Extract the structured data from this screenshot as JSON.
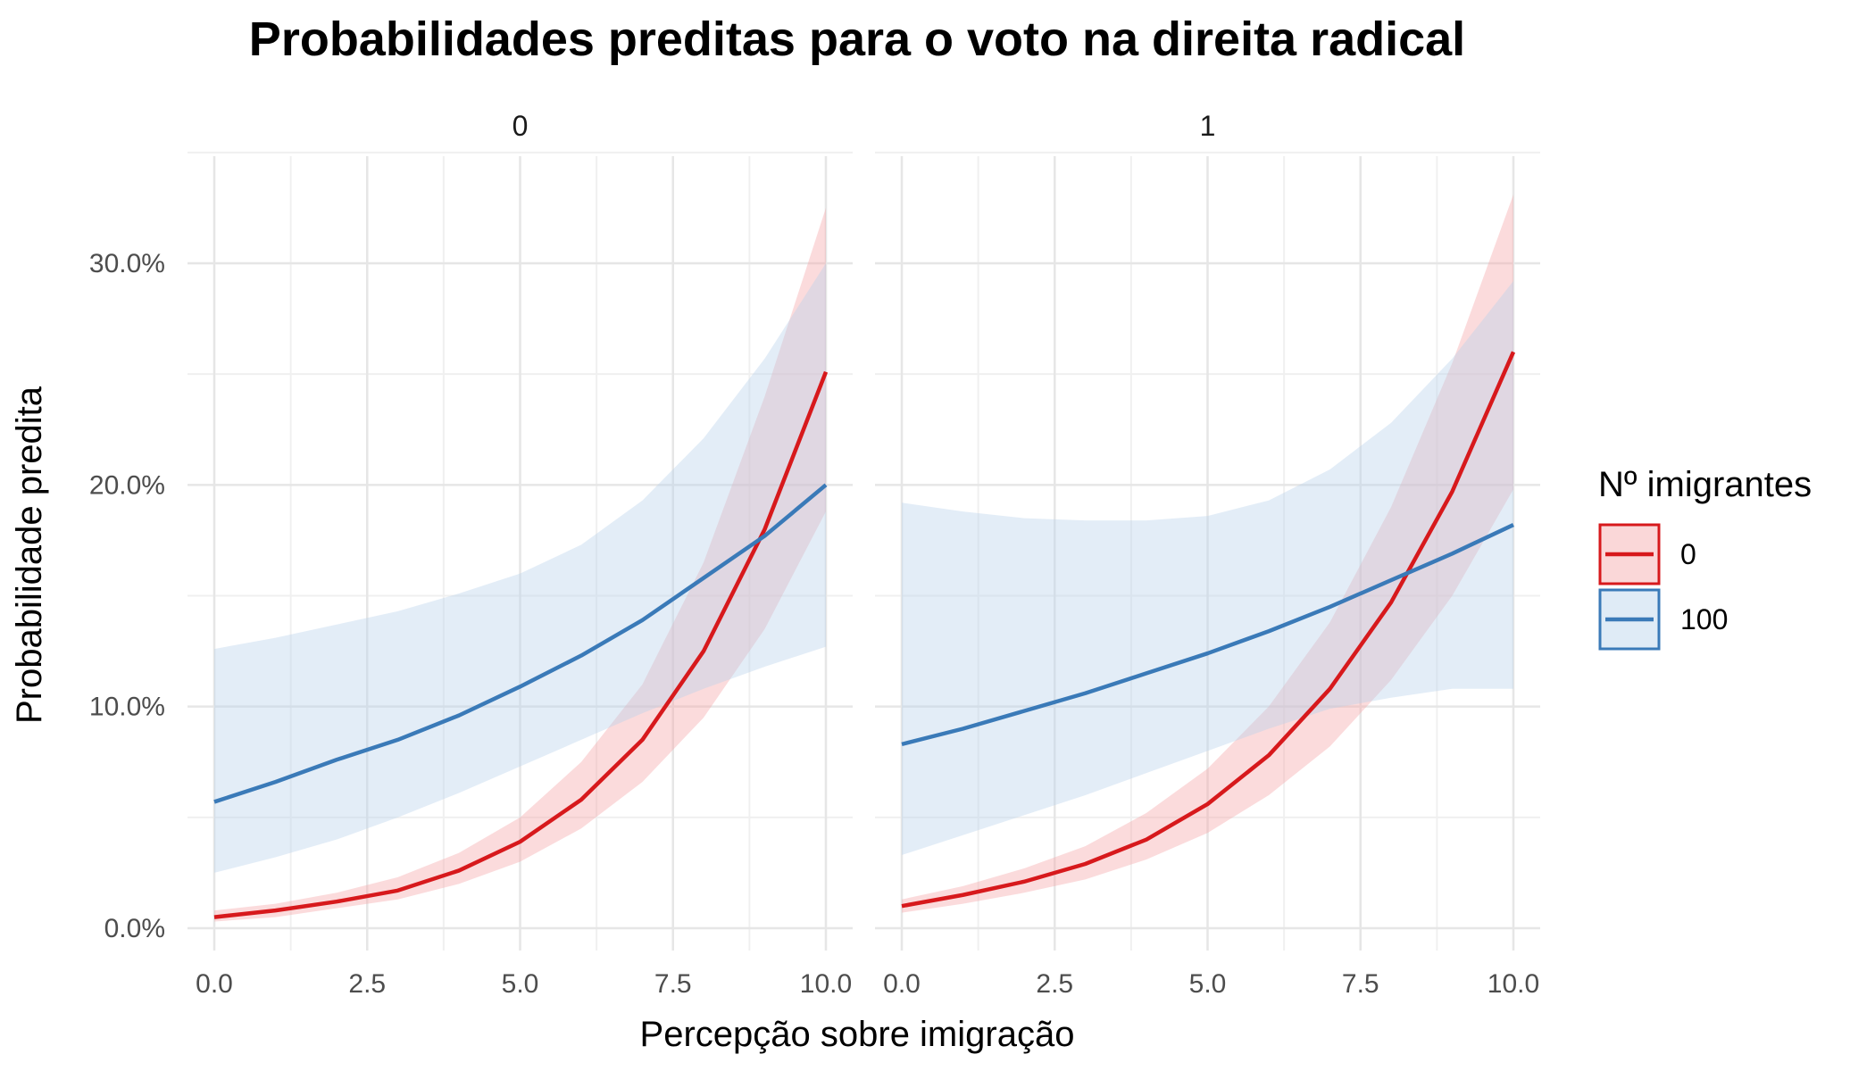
{
  "chart_data": {
    "type": "line",
    "title": "Probabilidades preditas para o voto na direita radical",
    "xlabel": "Percepção sobre imigração",
    "ylabel": "Probabilidade predita",
    "xlim": [
      0,
      10
    ],
    "ylim": [
      0,
      0.33
    ],
    "x_ticks": [
      0,
      2.5,
      5,
      7.5,
      10
    ],
    "x_tick_labels": [
      "0.0",
      "2.5",
      "5.0",
      "7.5",
      "10.0"
    ],
    "y_ticks": [
      0,
      0.1,
      0.2,
      0.3
    ],
    "y_tick_labels": [
      "0.0%",
      "10.0%",
      "20.0%",
      "30.0%"
    ],
    "grid": true,
    "legend": {
      "title": "Nº imigrantes",
      "position": "right",
      "entries": [
        {
          "label": "0",
          "color": "#d7191c",
          "fill": "#f4a6a8"
        },
        {
          "label": "100",
          "color": "#3a7ab8",
          "fill": "#b9d3ea"
        }
      ]
    },
    "panels": [
      {
        "label": "0",
        "x": [
          0,
          1,
          2,
          3,
          4,
          5,
          6,
          7,
          8,
          9,
          10
        ],
        "series": [
          {
            "name": "0",
            "color": "#d7191c",
            "values": [
              0.005,
              0.008,
              0.012,
              0.017,
              0.026,
              0.039,
              0.058,
              0.085,
              0.125,
              0.18,
              0.251
            ],
            "lower": [
              0.003,
              0.005,
              0.009,
              0.013,
              0.02,
              0.03,
              0.045,
              0.066,
              0.095,
              0.135,
              0.188
            ],
            "upper": [
              0.008,
              0.011,
              0.016,
              0.023,
              0.034,
              0.05,
              0.075,
              0.11,
              0.165,
              0.24,
              0.325
            ]
          },
          {
            "name": "100",
            "color": "#3a7ab8",
            "values": [
              0.057,
              0.066,
              0.076,
              0.085,
              0.096,
              0.109,
              0.123,
              0.139,
              0.158,
              0.177,
              0.2
            ],
            "lower": [
              0.025,
              0.032,
              0.04,
              0.05,
              0.061,
              0.073,
              0.085,
              0.097,
              0.108,
              0.118,
              0.127
            ],
            "upper": [
              0.126,
              0.131,
              0.137,
              0.143,
              0.151,
              0.16,
              0.173,
              0.193,
              0.221,
              0.257,
              0.3
            ]
          }
        ]
      },
      {
        "label": "1",
        "x": [
          0,
          1,
          2,
          3,
          4,
          5,
          6,
          7,
          8,
          9,
          10
        ],
        "series": [
          {
            "name": "0",
            "color": "#d7191c",
            "values": [
              0.01,
              0.015,
              0.021,
              0.029,
              0.04,
              0.056,
              0.078,
              0.108,
              0.147,
              0.197,
              0.26
            ],
            "lower": [
              0.007,
              0.011,
              0.016,
              0.022,
              0.031,
              0.043,
              0.06,
              0.082,
              0.112,
              0.15,
              0.198
            ],
            "upper": [
              0.013,
              0.019,
              0.027,
              0.037,
              0.052,
              0.072,
              0.1,
              0.138,
              0.19,
              0.255,
              0.331
            ]
          },
          {
            "name": "100",
            "color": "#3a7ab8",
            "values": [
              0.083,
              0.09,
              0.098,
              0.106,
              0.115,
              0.124,
              0.134,
              0.145,
              0.157,
              0.169,
              0.182
            ],
            "lower": [
              0.033,
              0.042,
              0.051,
              0.06,
              0.07,
              0.08,
              0.09,
              0.099,
              0.104,
              0.108,
              0.108
            ],
            "upper": [
              0.192,
              0.188,
              0.185,
              0.184,
              0.184,
              0.186,
              0.193,
              0.207,
              0.228,
              0.257,
              0.292
            ]
          }
        ]
      }
    ]
  }
}
